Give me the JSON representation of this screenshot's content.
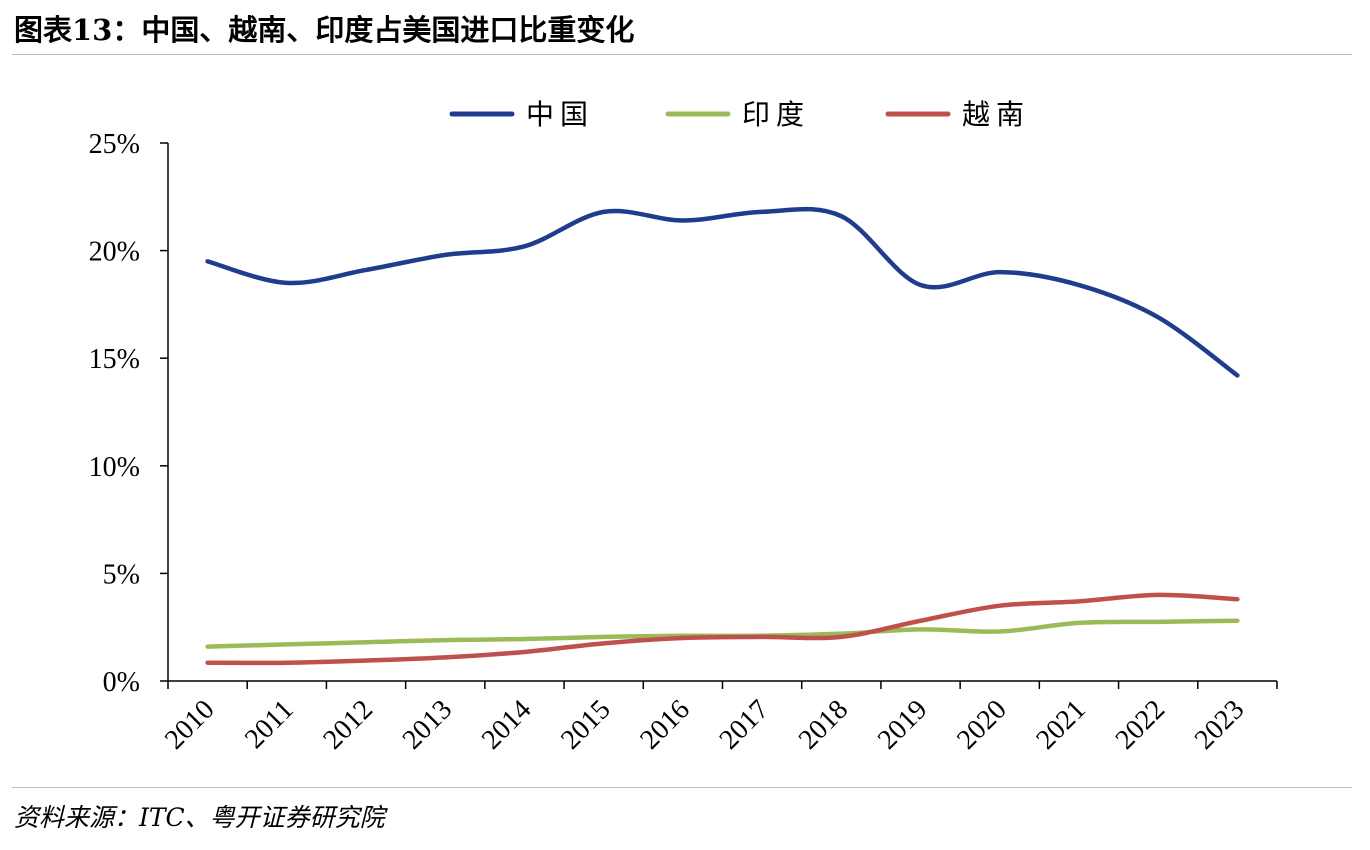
{
  "header": {
    "title": "图表13：中国、越南、印度占美国进口比重变化"
  },
  "footer": {
    "source": "资料来源：ITC、粤开证券研究院"
  },
  "chart_data": {
    "type": "line",
    "title": "图表13：中国、越南、印度占美国进口比重变化",
    "xlabel": "",
    "ylabel": "",
    "categories": [
      "2010",
      "2011",
      "2012",
      "2013",
      "2014",
      "2015",
      "2016",
      "2017",
      "2018",
      "2019",
      "2020",
      "2021",
      "2022",
      "2023"
    ],
    "ylim": [
      0,
      25
    ],
    "yticks": [
      0,
      5,
      10,
      15,
      20,
      25
    ],
    "ytick_labels": [
      "0%",
      "5%",
      "10%",
      "15%",
      "20%",
      "25%"
    ],
    "grid": false,
    "legend_position": "top-center",
    "series": [
      {
        "name": "中国",
        "color": "#1f3d8c",
        "values": [
          19.5,
          18.5,
          19.1,
          19.8,
          20.2,
          21.8,
          21.4,
          21.8,
          21.6,
          18.4,
          19.0,
          18.4,
          16.9,
          14.2
        ]
      },
      {
        "name": "印度",
        "color": "#9bbb59",
        "values": [
          1.6,
          1.7,
          1.8,
          1.9,
          1.95,
          2.05,
          2.1,
          2.1,
          2.2,
          2.4,
          2.3,
          2.7,
          2.75,
          2.8
        ]
      },
      {
        "name": "越南",
        "color": "#c0504d",
        "values": [
          0.85,
          0.85,
          0.95,
          1.1,
          1.35,
          1.75,
          2.0,
          2.05,
          2.05,
          2.8,
          3.5,
          3.7,
          4.0,
          3.8
        ]
      }
    ]
  }
}
